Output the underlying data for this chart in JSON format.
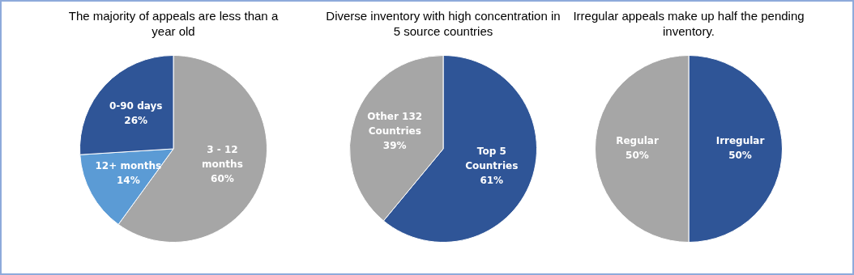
{
  "chart_data": [
    {
      "type": "pie",
      "title": "The majority of appeals are less than a year old",
      "categories": [
        "3 - 12 months",
        "12+ months",
        "0-90 days"
      ],
      "values": [
        60,
        14,
        26
      ],
      "value_labels": [
        "60%",
        "14%",
        "26%"
      ],
      "colors": [
        "#a6a6a6",
        "#5b9bd5",
        "#2f5597"
      ],
      "legend": false
    },
    {
      "type": "pie",
      "title": "Diverse inventory with high concentration in 5 source countries",
      "categories": [
        "Top 5 Countries",
        "Other 132 Countries"
      ],
      "values": [
        61,
        39
      ],
      "value_labels": [
        "61%",
        "39%"
      ],
      "colors": [
        "#2f5597",
        "#a6a6a6"
      ],
      "legend": false
    },
    {
      "type": "pie",
      "title": "Irregular appeals make up half the pending inventory.",
      "categories": [
        "Irregular",
        "Regular"
      ],
      "values": [
        50,
        50
      ],
      "value_labels": [
        "50%",
        "50%"
      ],
      "colors": [
        "#2f5597",
        "#a6a6a6"
      ],
      "legend": false
    }
  ]
}
